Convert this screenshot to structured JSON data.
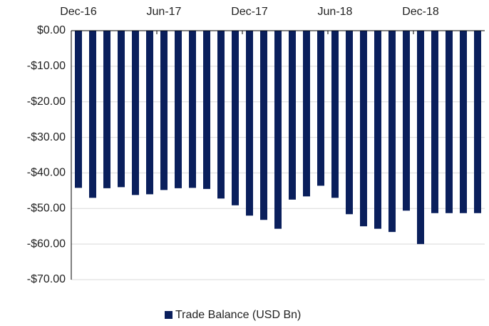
{
  "chart_data": {
    "type": "bar",
    "categories": [
      "Dec-16",
      null,
      null,
      null,
      null,
      null,
      "Jun-17",
      null,
      null,
      null,
      null,
      null,
      "Dec-17",
      null,
      null,
      null,
      null,
      null,
      "Jun-18",
      null,
      null,
      null,
      null,
      null,
      "Dec-18",
      null,
      null,
      null,
      null
    ],
    "series": [
      {
        "name": "Trade Balance (USD Bn)",
        "color": "#0a1f5c",
        "values": [
          -44.2,
          -47,
          -44.3,
          -44,
          -46.2,
          -46,
          -44.8,
          -44.3,
          -44.2,
          -44.5,
          -47.2,
          -49.1,
          -52,
          -53.2,
          -55.7,
          -47.5,
          -46.6,
          -43.6,
          -47,
          -51.6,
          -55,
          -55.7,
          -56.6,
          -50.6,
          -60,
          -51.3,
          -51.3,
          -51.3,
          -51.3
        ]
      }
    ],
    "ylim": [
      -70,
      0
    ],
    "yticks": [
      {
        "value": 0,
        "label": "$0.00"
      },
      {
        "value": -10,
        "label": "-$10.00"
      },
      {
        "value": -20,
        "label": "-$20.00"
      },
      {
        "value": -30,
        "label": "-$30.00"
      },
      {
        "value": -40,
        "label": "-$40.00"
      },
      {
        "value": -50,
        "label": "-$50.00"
      },
      {
        "value": -60,
        "label": "-$60.00"
      },
      {
        "value": -70,
        "label": "-$70.00"
      }
    ],
    "grid": true,
    "legend": "bottom"
  }
}
